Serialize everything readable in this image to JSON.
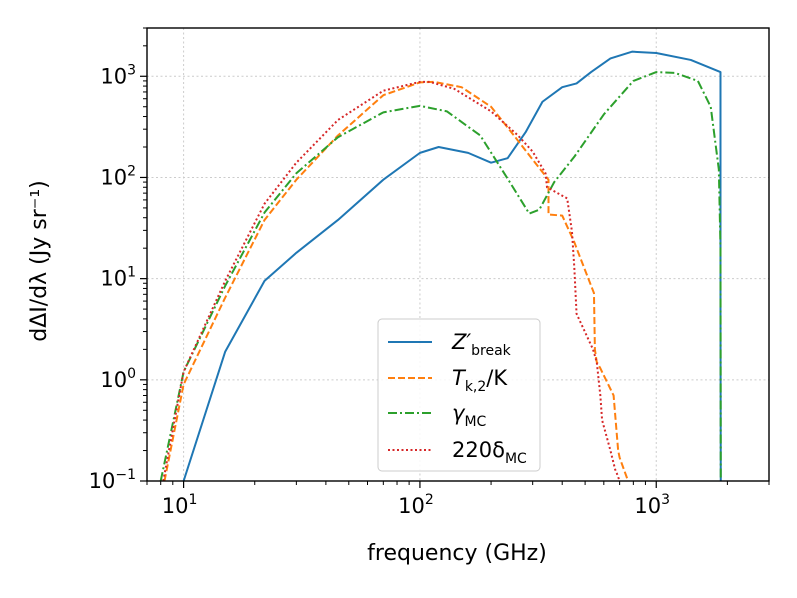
{
  "chart_data": {
    "type": "line",
    "title": "",
    "xlabel": "frequency (GHz)",
    "ylabel": "dΔI/dλ (Jy sr⁻¹)",
    "xscale": "log",
    "yscale": "log",
    "xlim": [
      7,
      3000
    ],
    "ylim": [
      0.1,
      3000
    ],
    "grid": true,
    "x_ticks": [
      {
        "base": "10",
        "exp": "1",
        "value": 10
      },
      {
        "base": "10",
        "exp": "2",
        "value": 100
      },
      {
        "base": "10",
        "exp": "3",
        "value": 1000
      }
    ],
    "y_ticks": [
      {
        "base": "10",
        "exp": "−1",
        "value": 0.1
      },
      {
        "base": "10",
        "exp": "0",
        "value": 1
      },
      {
        "base": "10",
        "exp": "1",
        "value": 10
      },
      {
        "base": "10",
        "exp": "2",
        "value": 100
      },
      {
        "base": "10",
        "exp": "3",
        "value": 1000
      }
    ],
    "legend_position": "lower-center",
    "series": [
      {
        "name": "Z′_break",
        "label_main": "Z′",
        "label_sub": "break",
        "color": "#1f77b4",
        "style": "solid",
        "x": [
          10,
          15,
          22,
          30,
          45,
          70,
          100,
          120,
          160,
          200,
          235,
          280,
          330,
          400,
          460,
          530,
          640,
          790,
          1000,
          1400,
          1870,
          1870,
          1875
        ],
        "y": [
          0.1,
          1.9,
          9.5,
          18,
          38,
          95,
          175,
          200,
          175,
          140,
          155,
          280,
          560,
          780,
          850,
          1100,
          1500,
          1750,
          1700,
          1450,
          1100,
          5,
          0.1
        ]
      },
      {
        "name": "T_k,2/K",
        "label_main": "T",
        "label_sub": "k,2",
        "label_tail": "/K",
        "color": "#ff7f0e",
        "style": "dashed",
        "x": [
          8.3,
          10,
          15,
          22,
          30,
          45,
          70,
          100,
          115,
          150,
          200,
          250,
          300,
          350,
          350,
          400,
          450,
          460,
          545,
          550,
          560,
          580,
          660,
          680,
          690,
          700,
          760
        ],
        "y": [
          0.1,
          0.9,
          6.5,
          38,
          95,
          260,
          650,
          870,
          880,
          780,
          500,
          260,
          150,
          95,
          43,
          42,
          23,
          20,
          7.2,
          2.0,
          1.5,
          1.3,
          0.7,
          0.3,
          0.2,
          0.17,
          0.1
        ]
      },
      {
        "name": "γ_MC",
        "label_main": "γ",
        "label_sub": "MC",
        "color": "#2ca02c",
        "style": "dashdot",
        "x": [
          8,
          10,
          15,
          22,
          30,
          45,
          70,
          100,
          130,
          180,
          240,
          290,
          320,
          370,
          450,
          600,
          800,
          1000,
          1200,
          1500,
          1700,
          1840,
          1870,
          1875
        ],
        "y": [
          0.1,
          1.2,
          8.5,
          45,
          110,
          250,
          440,
          510,
          450,
          260,
          90,
          44,
          48,
          90,
          160,
          420,
          900,
          1100,
          1080,
          900,
          500,
          120,
          20,
          0.1
        ]
      },
      {
        "name": "220δ_MC",
        "label_main": "220δ",
        "label_sub": "MC",
        "color": "#d62728",
        "style": "dotted",
        "x": [
          8.2,
          10,
          15,
          22,
          30,
          45,
          70,
          100,
          110,
          140,
          200,
          260,
          300,
          340,
          345,
          420,
          440,
          450,
          460,
          540,
          560,
          580,
          590,
          640,
          670,
          680,
          700
        ],
        "y": [
          0.1,
          1.2,
          9.5,
          55,
          140,
          370,
          720,
          880,
          880,
          750,
          450,
          260,
          180,
          110,
          80,
          62,
          29,
          13,
          4.5,
          2.0,
          1.5,
          0.7,
          0.4,
          0.2,
          0.13,
          0.12,
          0.1
        ]
      }
    ]
  }
}
